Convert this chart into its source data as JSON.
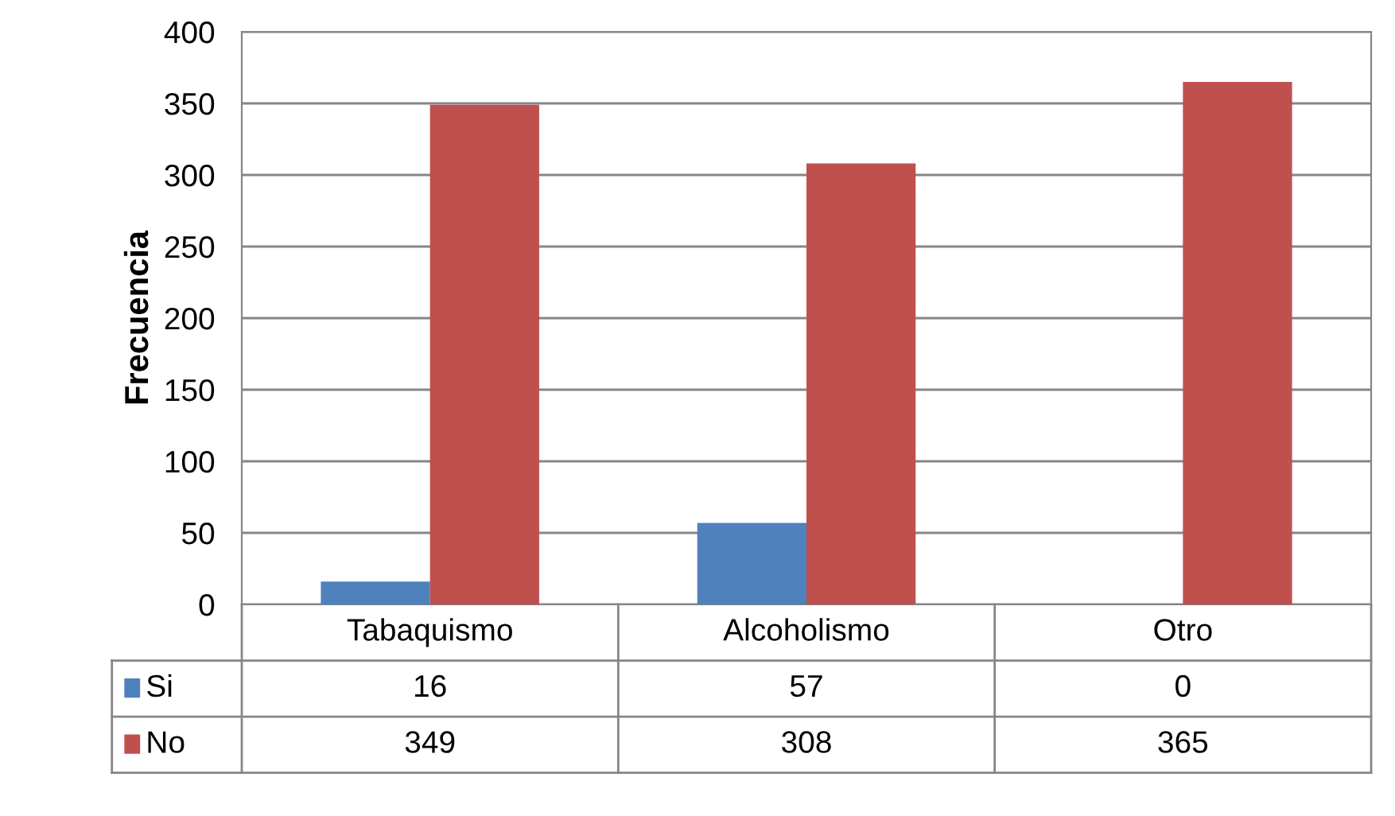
{
  "chart_data": {
    "type": "bar",
    "ylabel": "Frecuencia",
    "categories": [
      "Tabaquismo",
      "Alcoholismo",
      "Otro"
    ],
    "series": [
      {
        "name": "Si",
        "color": "#4f81bd",
        "values": [
          16,
          57,
          0
        ]
      },
      {
        "name": "No",
        "color": "#c0504d",
        "values": [
          349,
          308,
          365
        ]
      }
    ],
    "ylim": [
      0,
      400
    ],
    "yticks": [
      0,
      50,
      100,
      150,
      200,
      250,
      300,
      350,
      400
    ],
    "grid": "y",
    "data_labels": true,
    "legend": "bottom left"
  }
}
